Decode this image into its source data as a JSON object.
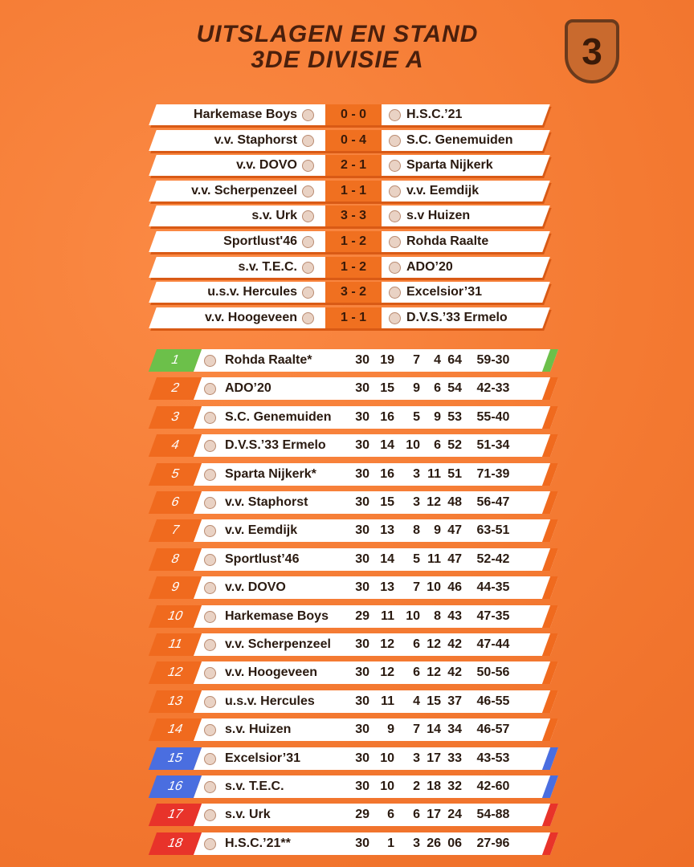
{
  "header": {
    "title_line1": "UITSLAGEN EN STAND",
    "title_line2": "3DE DIVISIE A",
    "badge": "3"
  },
  "results": [
    {
      "home": "Harkemase Boys",
      "score": "0 - 0",
      "away": "H.S.C.’21"
    },
    {
      "home": "v.v. Staphorst",
      "score": "0 - 4",
      "away": "S.C. Genemuiden"
    },
    {
      "home": "v.v. DOVO",
      "score": "2 - 1",
      "away": "Sparta Nijkerk"
    },
    {
      "home": "v.v. Scherpenzeel",
      "score": "1 - 1",
      "away": "v.v. Eemdijk"
    },
    {
      "home": "s.v. Urk",
      "score": "3 - 3",
      "away": "s.v Huizen"
    },
    {
      "home": "Sportlust'46",
      "score": "1 - 2",
      "away": "Rohda Raalte"
    },
    {
      "home": "s.v. T.E.C.",
      "score": "1 - 2",
      "away": "ADO’20"
    },
    {
      "home": "u.s.v. Hercules",
      "score": "3 - 2",
      "away": "Excelsior’31"
    },
    {
      "home": "v.v. Hoogeveen",
      "score": "1 - 1",
      "away": "D.V.S.’33 Ermelo"
    }
  ],
  "standings": {
    "rows": [
      [
        "1",
        "Rohda Raalte*",
        "30",
        "19",
        "7",
        "4",
        "64",
        "59-30"
      ],
      [
        "2",
        "ADO’20",
        "30",
        "15",
        "9",
        "6",
        "54",
        "42-33"
      ],
      [
        "3",
        "S.C. Genemuiden",
        "30",
        "16",
        "5",
        "9",
        "53",
        "55-40"
      ],
      [
        "4",
        "D.V.S.’33 Ermelo",
        "30",
        "14",
        "10",
        "6",
        "52",
        "51-34"
      ],
      [
        "5",
        "Sparta Nijkerk*",
        "30",
        "16",
        "3",
        "11",
        "51",
        "71-39"
      ],
      [
        "6",
        "v.v. Staphorst",
        "30",
        "15",
        "3",
        "12",
        "48",
        "56-47"
      ],
      [
        "7",
        "v.v. Eemdijk",
        "30",
        "13",
        "8",
        "9",
        "47",
        "63-51"
      ],
      [
        "8",
        "Sportlust’46",
        "30",
        "14",
        "5",
        "11",
        "47",
        "52-42"
      ],
      [
        "9",
        "v.v. DOVO",
        "30",
        "13",
        "7",
        "10",
        "46",
        "44-35"
      ],
      [
        "10",
        "Harkemase Boys",
        "29",
        "11",
        "10",
        "8",
        "43",
        "47-35"
      ],
      [
        "11",
        "v.v. Scherpenzeel",
        "30",
        "12",
        "6",
        "12",
        "42",
        "47-44"
      ],
      [
        "12",
        "v.v. Hoogeveen",
        "30",
        "12",
        "6",
        "12",
        "42",
        "50-56"
      ],
      [
        "13",
        "u.s.v. Hercules",
        "30",
        "11",
        "4",
        "15",
        "37",
        "46-55"
      ],
      [
        "14",
        "s.v. Huizen",
        "30",
        "9",
        "7",
        "14",
        "34",
        "46-57"
      ],
      [
        "15",
        "Excelsior’31",
        "30",
        "10",
        "3",
        "17",
        "33",
        "43-53"
      ],
      [
        "16",
        "s.v. T.E.C.",
        "30",
        "10",
        "2",
        "18",
        "32",
        "42-60"
      ],
      [
        "17",
        "s.v. Urk",
        "29",
        "6",
        "6",
        "17",
        "24",
        "54-88"
      ],
      [
        "18",
        "H.S.C.’21**",
        "30",
        "1",
        "3",
        "26",
        "06",
        "27-96"
      ]
    ]
  }
}
